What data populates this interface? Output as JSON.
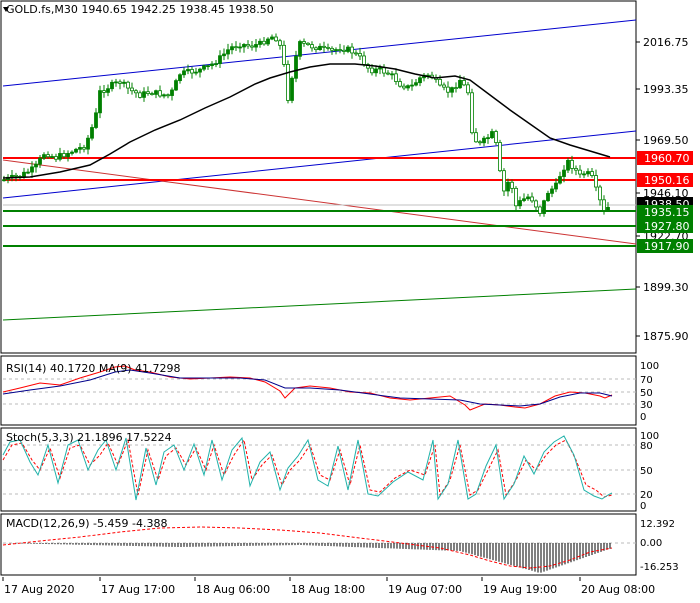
{
  "main": {
    "header": "GOLD.fs,M30  1940.65 1942.25 1938.45 1938.50",
    "y_ticks": [
      "2016.75",
      "1993.35",
      "1969.50",
      "1946.10",
      "1922.70",
      "1899.30",
      "1875.90"
    ],
    "price_labels": [
      {
        "text": "1960.70",
        "color": "#ff0000"
      },
      {
        "text": "1950.16",
        "color": "#ff0000"
      },
      {
        "text": "1938.50",
        "color": "#000000"
      },
      {
        "text": "1935.15",
        "color": "#008000"
      },
      {
        "text": "1927.80",
        "color": "#008000"
      },
      {
        "text": "1917.90",
        "color": "#008000"
      }
    ]
  },
  "rsi": {
    "header": "RSI(14) 40.1720  MA(9) 41.7298",
    "ticks": [
      "100",
      "70",
      "50",
      "30",
      "0"
    ]
  },
  "stoch": {
    "header": "Stoch(5,3,3) 21.1896 17.5224",
    "ticks": [
      "100",
      "80",
      "50",
      "20",
      "0"
    ]
  },
  "macd": {
    "header": "MACD(12,26,9) -5.459 -4.388",
    "ticks": [
      "12.392",
      "0.00",
      "-16.253"
    ]
  },
  "time_labels": [
    "17 Aug 2020",
    "17 Aug 17:00",
    "18 Aug 06:00",
    "18 Aug 18:00",
    "19 Aug 07:00",
    "19 Aug 19:00",
    "20 Aug 08:00"
  ],
  "colors": {
    "candle": "#008000",
    "ma": "#000000",
    "resistance": "#ff0000",
    "support": "#008000",
    "channel": "#0000cd",
    "rsi_line": "#ff0000",
    "rsi_ma": "#00008b",
    "stoch_main": "#20b2aa",
    "stoch_signal": "#ff0000",
    "macd_hist": "#000000",
    "macd_signal": "#ff0000"
  }
}
